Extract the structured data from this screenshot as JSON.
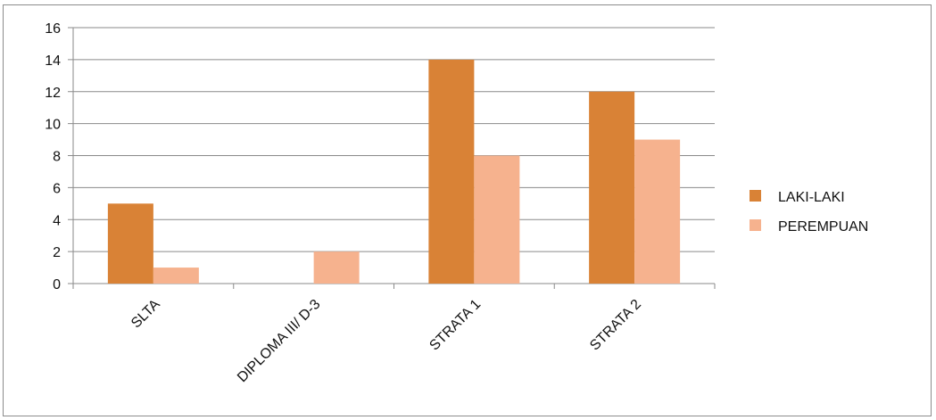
{
  "chart_data": {
    "type": "bar",
    "categories": [
      "SLTA",
      "DIPLOMA III/ D-3",
      "STRATA 1",
      "STRATA 2"
    ],
    "series": [
      {
        "name": "LAKI-LAKI",
        "values": [
          5,
          0,
          14,
          12
        ],
        "color": "#D98236"
      },
      {
        "name": "PEREMPUAN",
        "values": [
          1,
          2,
          8,
          9
        ],
        "color": "#F6B28E"
      }
    ],
    "ylim": [
      0,
      16
    ],
    "yticks": [
      "0",
      "2",
      "4",
      "6",
      "8",
      "10",
      "12",
      "14",
      "16"
    ],
    "grid": true,
    "legend": "right",
    "title": "",
    "xlabel": "",
    "ylabel": ""
  }
}
